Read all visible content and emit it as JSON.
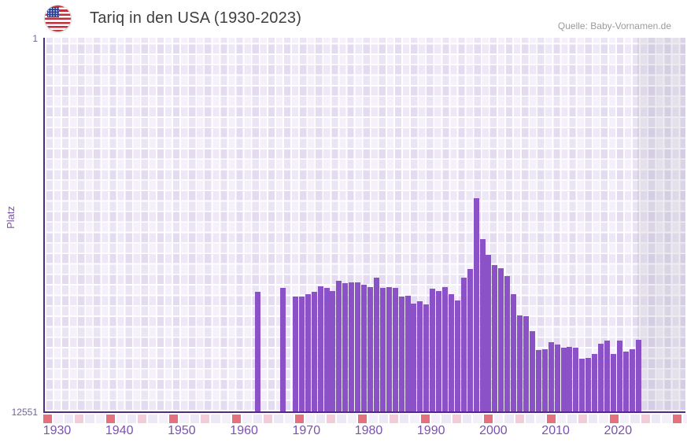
{
  "header": {
    "title": "Tariq in den USA (1930-2023)",
    "source": "Quelle: Baby-Vornamen.de",
    "flag": "us-flag-icon"
  },
  "chart_data": {
    "type": "bar",
    "title": "Tariq in den USA (1930-2023)",
    "xlabel": "",
    "ylabel": "Platz",
    "ylim": [
      12551,
      1
    ],
    "y_axis_inverted": true,
    "grid": "checkerboard",
    "legend_position": "none",
    "y_ticks": [
      "1",
      "12551"
    ],
    "x_ticks": [
      "1930",
      "1940",
      "1950",
      "1960",
      "1970",
      "1980",
      "1990",
      "2000",
      "2010",
      "2020"
    ],
    "x_tick_years": [
      1930,
      1940,
      1950,
      1960,
      1970,
      1980,
      1990,
      2000,
      2010,
      2020
    ],
    "x": [
      1962,
      1966,
      1968,
      1969,
      1970,
      1971,
      1972,
      1973,
      1974,
      1975,
      1976,
      1977,
      1978,
      1979,
      1980,
      1981,
      1982,
      1983,
      1984,
      1985,
      1986,
      1987,
      1988,
      1989,
      1990,
      1991,
      1992,
      1993,
      1994,
      1995,
      1996,
      1997,
      1998,
      1999,
      2000,
      2001,
      2002,
      2003,
      2004,
      2005,
      2006,
      2007,
      2008,
      2009,
      2010,
      2011,
      2012,
      2013,
      2014,
      2015,
      2016,
      2017,
      2018,
      2019,
      2020,
      2021,
      2022,
      2023
    ],
    "values": [
      8550,
      8420,
      8710,
      8710,
      8630,
      8550,
      8370,
      8420,
      8530,
      8180,
      8260,
      8240,
      8240,
      8310,
      8390,
      8080,
      8420,
      8390,
      8420,
      8710,
      8680,
      8950,
      8870,
      8970,
      8450,
      8530,
      8390,
      8630,
      8840,
      8080,
      7790,
      5420,
      6790,
      7320,
      7660,
      7760,
      8030,
      8630,
      9340,
      9370,
      9870,
      10500,
      10470,
      10230,
      10310,
      10420,
      10390,
      10420,
      10790,
      10760,
      10630,
      10290,
      10180,
      10630,
      10180,
      10550,
      10470,
      10160
    ],
    "best_rank": 5420,
    "best_rank_year": 1997,
    "no_data_years": "1930-1961, 1963-1965, 1967"
  },
  "colors": {
    "bar": "#8a52c6",
    "axis": "#4f2b85",
    "xtick": "#7d50b3",
    "ytick": "#73639a",
    "title": "#3f3f3f",
    "source": "#9b9b9b",
    "strip_red": "#e5707e",
    "strip_pink": "#f4cbd8",
    "strip_light_a": "#ece8f6",
    "strip_light_b": "#f3f0fa",
    "flag_red": "#c0303c",
    "flag_blue": "#2b3f94"
  }
}
